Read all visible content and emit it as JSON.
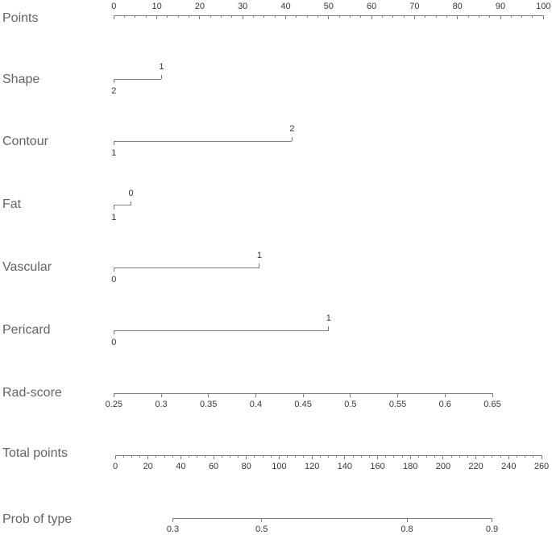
{
  "chart_data": {
    "type": "nomogram",
    "orientation": "horizontal",
    "title": "",
    "points_scale": {
      "min": 0,
      "max": 100
    },
    "rows": [
      {
        "id": "points",
        "label": "Points",
        "kind": "points_axis",
        "ticks": [
          0,
          10,
          20,
          30,
          40,
          50,
          60,
          70,
          80,
          90,
          100
        ],
        "tick_labels": [
          "0",
          "10",
          "20",
          "30",
          "40",
          "50",
          "60",
          "70",
          "80",
          "90",
          "100"
        ],
        "minor_step": 2.5,
        "tick_label_side": "above"
      },
      {
        "id": "shape",
        "label": "Shape",
        "kind": "factor",
        "levels": [
          {
            "value": "2",
            "points": 0,
            "label_side": "below"
          },
          {
            "value": "1",
            "points": 11.1,
            "label_side": "above"
          }
        ]
      },
      {
        "id": "contour",
        "label": "Contour",
        "kind": "factor",
        "levels": [
          {
            "value": "1",
            "points": 0,
            "label_side": "below"
          },
          {
            "value": "2",
            "points": 41.5,
            "label_side": "above"
          }
        ]
      },
      {
        "id": "fat",
        "label": "Fat",
        "kind": "factor",
        "levels": [
          {
            "value": "1",
            "points": 0,
            "label_side": "below"
          },
          {
            "value": "0",
            "points": 4,
            "label_side": "above"
          }
        ]
      },
      {
        "id": "vascular",
        "label": "Vascular",
        "kind": "factor",
        "levels": [
          {
            "value": "0",
            "points": 0,
            "label_side": "below"
          },
          {
            "value": "1",
            "points": 33.9,
            "label_side": "above"
          }
        ]
      },
      {
        "id": "pericard",
        "label": "Pericard",
        "kind": "factor",
        "levels": [
          {
            "value": "0",
            "points": 0,
            "label_side": "below"
          },
          {
            "value": "1",
            "points": 50,
            "label_side": "above"
          }
        ]
      },
      {
        "id": "rad_score",
        "label": "Rad-score",
        "kind": "value_axis",
        "min": 0.25,
        "max": 0.65,
        "ticks": [
          0.25,
          0.3,
          0.35,
          0.4,
          0.45,
          0.5,
          0.55,
          0.6,
          0.65
        ],
        "tick_labels": [
          "0.25",
          "0.3",
          "0.35",
          "0.4",
          "0.45",
          "0.5",
          "0.55",
          "0.6",
          "0.65"
        ],
        "minor_step": null,
        "tick_label_side": "below"
      },
      {
        "id": "total_points",
        "label": "Total points",
        "kind": "value_axis",
        "min": 0,
        "max": 260,
        "ticks": [
          0,
          20,
          40,
          60,
          80,
          100,
          120,
          140,
          160,
          180,
          200,
          220,
          240,
          260
        ],
        "tick_labels": [
          "0",
          "20",
          "40",
          "60",
          "80",
          "100",
          "120",
          "140",
          "160",
          "180",
          "200",
          "220",
          "240",
          "260"
        ],
        "minor_step": 5,
        "tick_label_side": "below"
      },
      {
        "id": "prob",
        "label": "Prob of type",
        "kind": "prob_axis",
        "scale": "logit",
        "min": 0.3,
        "max": 0.9,
        "ticks": [
          0.3,
          0.5,
          0.8,
          0.9
        ],
        "tick_labels": [
          "0.3",
          "0.5",
          "0.8",
          "0.9"
        ],
        "minor_step": null,
        "tick_label_side": "below"
      }
    ]
  }
}
